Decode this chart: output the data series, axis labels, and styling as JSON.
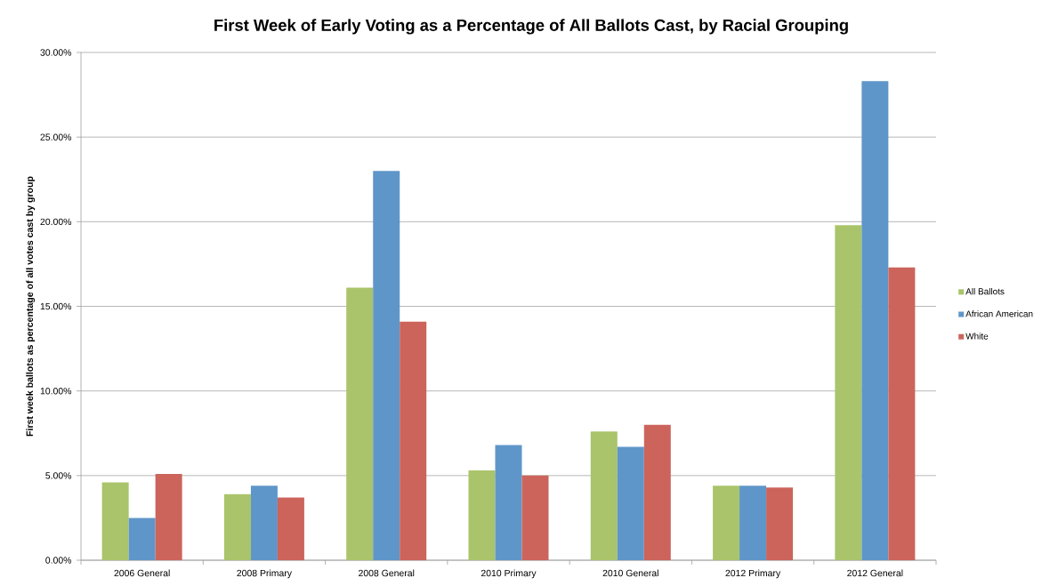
{
  "chart_data": {
    "type": "bar",
    "title": "First Week of Early Voting as a Percentage of All Ballots Cast, by Racial Grouping",
    "ylabel": "First week ballots as percentage of all votes cast by group",
    "categories": [
      "2006 General",
      "2008 Primary",
      "2008 General",
      "2010 Primary",
      "2010 General",
      "2012 Primary",
      "2012 General"
    ],
    "series": [
      {
        "name": "All Ballots",
        "color": "#a9c46a",
        "values": [
          4.6,
          3.9,
          16.1,
          5.3,
          7.6,
          4.4,
          19.8
        ]
      },
      {
        "name": "African American",
        "color": "#5f96c9",
        "values": [
          2.5,
          4.4,
          23.0,
          6.8,
          6.7,
          4.4,
          28.3
        ]
      },
      {
        "name": "White",
        "color": "#cc645c",
        "values": [
          5.1,
          3.7,
          14.1,
          5.0,
          8.0,
          4.3,
          17.3
        ]
      }
    ],
    "ylim": [
      0,
      30
    ],
    "yticks": [
      {
        "value": 0,
        "label": "0.00%"
      },
      {
        "value": 5,
        "label": "5.00%"
      },
      {
        "value": 10,
        "label": "10.00%"
      },
      {
        "value": 15,
        "label": "15.00%"
      },
      {
        "value": 20,
        "label": "20.00%"
      },
      {
        "value": 25,
        "label": "25.00%"
      },
      {
        "value": 30,
        "label": "30.00%"
      }
    ],
    "grid": "y",
    "legend": "right"
  }
}
